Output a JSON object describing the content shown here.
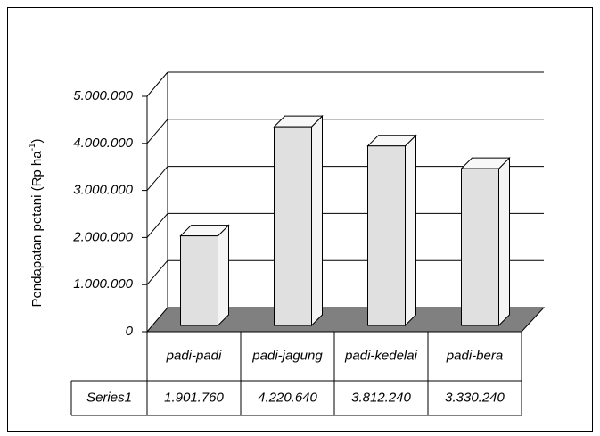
{
  "chart_data": {
    "type": "bar3d",
    "ylabel": [
      "Pendapatan petani (Rp ha",
      "-1",
      ")"
    ],
    "categories": [
      "padi-padi",
      "padi-jagung",
      "padi-kedelai",
      "padi-bera"
    ],
    "series": [
      {
        "name": "Series1",
        "color": "#e0e0e0",
        "values": [
          1901760,
          4220640,
          3812240,
          3330240
        ],
        "value_labels": [
          "1.901.760",
          "4.220.640",
          "3.812.240",
          "3.330.240"
        ]
      }
    ],
    "ylim": [
      0,
      5000000
    ],
    "yticks": [
      0,
      {
        "value": 1000000,
        "label": "1.000.000"
      },
      {
        "value": 2000000,
        "label": "2.000.000"
      },
      {
        "value": 3000000,
        "label": "3.000.000"
      },
      {
        "value": 4000000,
        "label": "4.000.000"
      },
      {
        "value": 5000000,
        "label": "5.000.000"
      }
    ],
    "grid": true,
    "floor_color": "#808080"
  }
}
